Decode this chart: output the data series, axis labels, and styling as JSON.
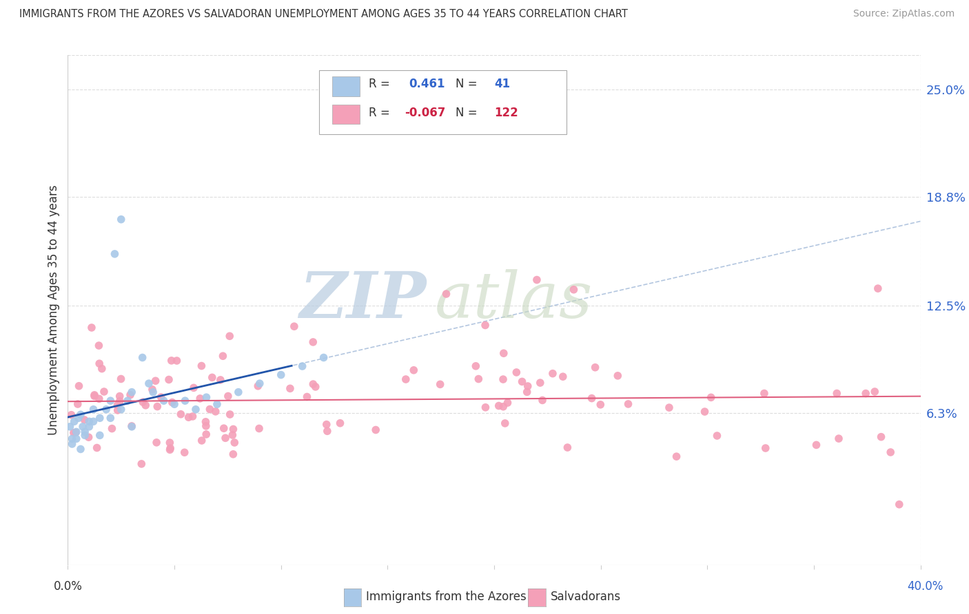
{
  "title": "IMMIGRANTS FROM THE AZORES VS SALVADORAN UNEMPLOYMENT AMONG AGES 35 TO 44 YEARS CORRELATION CHART",
  "source": "Source: ZipAtlas.com",
  "ylabel": "Unemployment Among Ages 35 to 44 years",
  "ytick_labels": [
    "6.3%",
    "12.5%",
    "18.8%",
    "25.0%"
  ],
  "ytick_values": [
    0.063,
    0.125,
    0.188,
    0.25
  ],
  "xlim": [
    0.0,
    0.4
  ],
  "ylim": [
    -0.025,
    0.27
  ],
  "color_azores": "#A8C8E8",
  "color_salvador": "#F4A0B8",
  "trendline_azores_color": "#2255AA",
  "trendline_salvador_color": "#E06080",
  "dashed_color": "#A0B8D8",
  "watermark_zip": "ZIP",
  "watermark_atlas": "atlas",
  "grid_color": "#DDDDDD",
  "border_color": "#CCCCCC"
}
